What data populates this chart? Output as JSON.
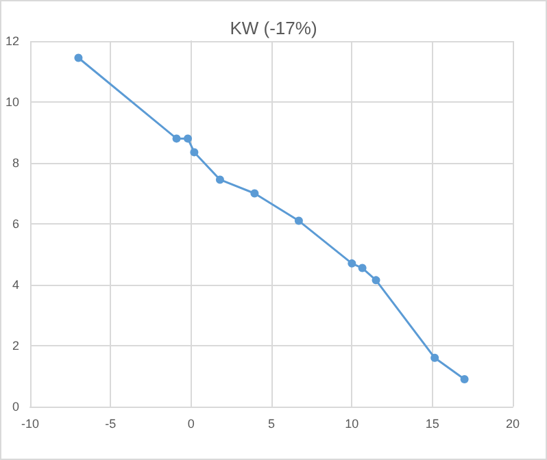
{
  "chart_data": {
    "type": "line",
    "title": "KW (-17%)",
    "x": [
      -7,
      -0.9,
      -0.2,
      0.2,
      1.8,
      3.95,
      6.7,
      10,
      10.65,
      11.5,
      15.15,
      17
    ],
    "series": [
      {
        "color": "#5b9bd5",
        "values": [
          11.45,
          8.8,
          8.8,
          8.35,
          7.45,
          7.0,
          6.1,
          4.7,
          4.55,
          4.15,
          1.6,
          0.9
        ]
      }
    ],
    "xlim": [
      -10,
      20
    ],
    "xticks": [
      -10,
      -5,
      0,
      5,
      10,
      15,
      20
    ],
    "ylim": [
      0,
      12
    ],
    "yticks": [
      0,
      2,
      4,
      6,
      8,
      10,
      12
    ],
    "grid": true,
    "marker": "circle",
    "line_style": "solid"
  }
}
